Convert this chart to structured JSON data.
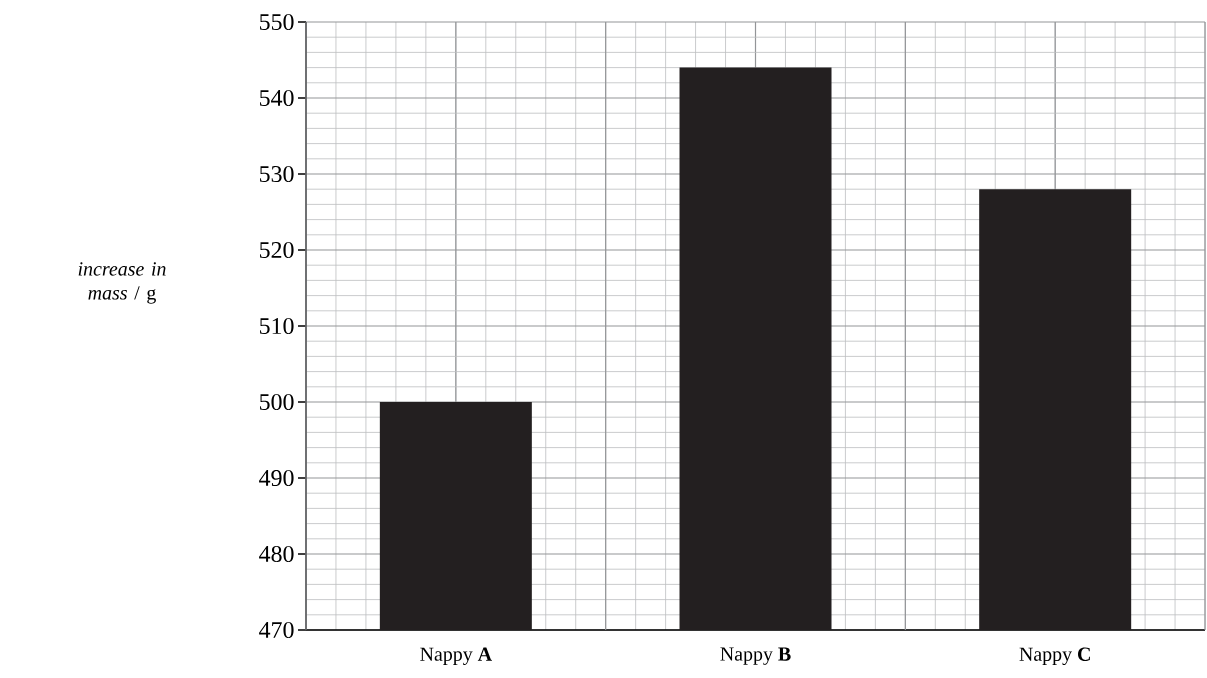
{
  "chart_data": {
    "type": "bar",
    "ylabel": "*increase in mass* / g",
    "categories": [
      "Nappy **A**",
      "Nappy **B**",
      "Nappy **C**"
    ],
    "values": [
      500,
      544,
      528
    ],
    "color": "#231f20",
    "ylim": [
      470,
      550
    ],
    "yticks": [
      470,
      480,
      490,
      500,
      510,
      520,
      530,
      540,
      550
    ],
    "grid": true
  }
}
